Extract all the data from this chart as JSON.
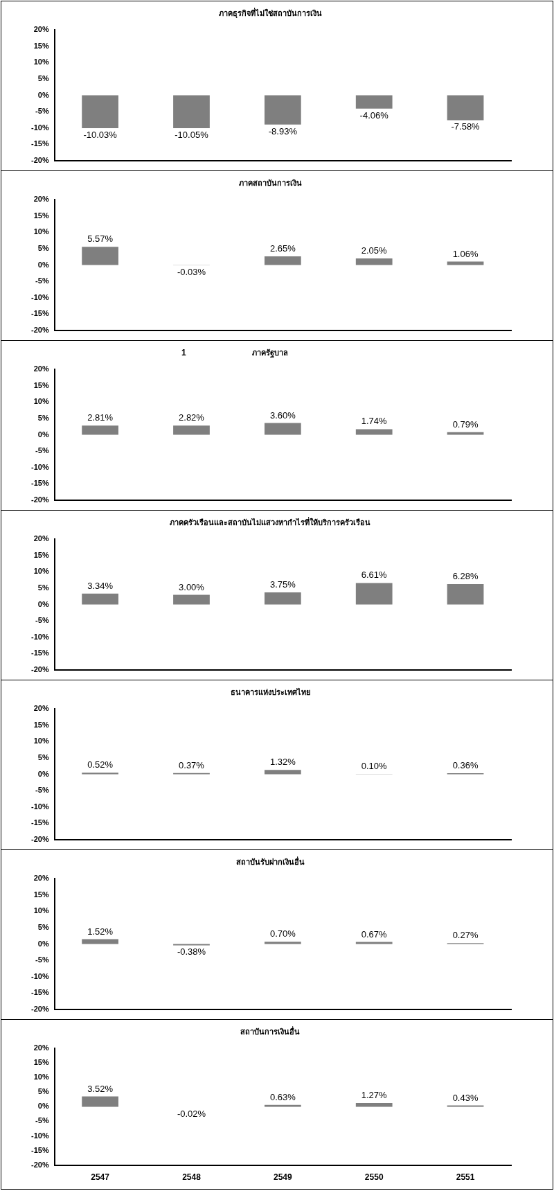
{
  "chart_data": [
    {
      "type": "bar",
      "title": "ภาคธุรกิจที่ไม่ใช่สถาบันการเงิน",
      "categories": [
        "2547",
        "2548",
        "2549",
        "2550",
        "2551"
      ],
      "values": [
        -10.03,
        -10.05,
        -8.93,
        -4.06,
        -7.58
      ],
      "value_labels": [
        "-10.03%",
        "-10.05%",
        "-8.93%",
        "-4.06%",
        "-7.58%"
      ],
      "color": "#7f7f7f",
      "ylim": [
        -20,
        20
      ],
      "yticks": [
        {
          "value": -20,
          "label": "-20%"
        },
        {
          "value": -15,
          "label": "-15%"
        },
        {
          "value": -10,
          "label": "-10%"
        },
        {
          "value": -5,
          "label": "-5%"
        },
        {
          "value": 0,
          "label": "0%"
        },
        {
          "value": 5,
          "label": "5%"
        },
        {
          "value": 10,
          "label": "10%"
        },
        {
          "value": 15,
          "label": "15%"
        },
        {
          "value": 20,
          "label": "20%"
        }
      ],
      "tick_labels": "y"
    },
    {
      "type": "bar",
      "title": "ภาคสถาบันการเงิน",
      "categories": [
        "2547",
        "2548",
        "2549",
        "2550",
        "2551"
      ],
      "values": [
        5.57,
        -0.03,
        2.65,
        2.05,
        1.06
      ],
      "value_labels": [
        "5.57%",
        "-0.03%",
        "2.65%",
        "2.05%",
        "1.06%"
      ],
      "color": "#7f7f7f",
      "ylim": [
        -20,
        20
      ],
      "yticks": [
        {
          "value": -20,
          "label": "-20%"
        },
        {
          "value": -15,
          "label": "-15%"
        },
        {
          "value": -10,
          "label": "-10%"
        },
        {
          "value": -5,
          "label": "-5%"
        },
        {
          "value": 0,
          "label": "0%"
        },
        {
          "value": 5,
          "label": "5%"
        },
        {
          "value": 10,
          "label": "10%"
        },
        {
          "value": 15,
          "label": "15%"
        },
        {
          "value": 20,
          "label": "20%"
        }
      ],
      "tick_labels": "y"
    },
    {
      "type": "bar",
      "title": "ภาครัฐบาล",
      "annotations": [
        "1"
      ],
      "categories": [
        "2547",
        "2548",
        "2549",
        "2550",
        "2551"
      ],
      "values": [
        2.81,
        2.82,
        3.6,
        1.74,
        0.79
      ],
      "value_labels": [
        "2.81%",
        "2.82%",
        "3.60%",
        "1.74%",
        "0.79%"
      ],
      "color": "#7f7f7f",
      "ylim": [
        -20,
        20
      ],
      "yticks": [
        {
          "value": -20,
          "label": "-20%"
        },
        {
          "value": -15,
          "label": "-15%"
        },
        {
          "value": -10,
          "label": "-10%"
        },
        {
          "value": -5,
          "label": "-5%"
        },
        {
          "value": 0,
          "label": "0%"
        },
        {
          "value": 5,
          "label": "5%"
        },
        {
          "value": 10,
          "label": "10%"
        },
        {
          "value": 15,
          "label": "15%"
        },
        {
          "value": 20,
          "label": "20%"
        }
      ],
      "tick_labels": "y"
    },
    {
      "type": "bar",
      "title": "ภาคครัวเรือนและสถาบันไม่แสวงหากำไรที่ให้บริการครัวเรือน",
      "categories": [
        "2547",
        "2548",
        "2549",
        "2550",
        "2551"
      ],
      "values": [
        3.34,
        3.0,
        3.75,
        6.61,
        6.28
      ],
      "value_labels": [
        "3.34%",
        "3.00%",
        "3.75%",
        "6.61%",
        "6.28%"
      ],
      "color": "#7f7f7f",
      "ylim": [
        -20,
        20
      ],
      "yticks": [
        {
          "value": -20,
          "label": "-20%"
        },
        {
          "value": -15,
          "label": "-15%"
        },
        {
          "value": -10,
          "label": "-10%"
        },
        {
          "value": -5,
          "label": "-5%"
        },
        {
          "value": 0,
          "label": "0%"
        },
        {
          "value": 5,
          "label": "5%"
        },
        {
          "value": 10,
          "label": "10%"
        },
        {
          "value": 15,
          "label": "15%"
        },
        {
          "value": 20,
          "label": "20%"
        }
      ],
      "tick_labels": "y"
    },
    {
      "type": "bar",
      "title": "ธนาคารแห่งประเทศไทย",
      "categories": [
        "2547",
        "2548",
        "2549",
        "2550",
        "2551"
      ],
      "values": [
        0.52,
        0.37,
        1.32,
        0.1,
        0.36
      ],
      "value_labels": [
        "0.52%",
        "0.37%",
        "1.32%",
        "0.10%",
        "0.36%"
      ],
      "color": "#7f7f7f",
      "ylim": [
        -20,
        20
      ],
      "yticks": [
        {
          "value": -20,
          "label": "-20%"
        },
        {
          "value": -15,
          "label": "-15%"
        },
        {
          "value": -10,
          "label": "-10%"
        },
        {
          "value": -5,
          "label": "-5%"
        },
        {
          "value": 0,
          "label": "0%"
        },
        {
          "value": 5,
          "label": "5%"
        },
        {
          "value": 10,
          "label": "10%"
        },
        {
          "value": 15,
          "label": "15%"
        },
        {
          "value": 20,
          "label": "20%"
        }
      ],
      "tick_labels": "y"
    },
    {
      "type": "bar",
      "title": "สถาบันรับฝากเงินอื่น",
      "categories": [
        "2547",
        "2548",
        "2549",
        "2550",
        "2551"
      ],
      "values": [
        1.52,
        -0.38,
        0.7,
        0.67,
        0.27
      ],
      "value_labels": [
        "1.52%",
        "-0.38%",
        "0.70%",
        "0.67%",
        "0.27%"
      ],
      "color": "#7f7f7f",
      "ylim": [
        -20,
        20
      ],
      "yticks": [
        {
          "value": -20,
          "label": "-20%"
        },
        {
          "value": -15,
          "label": "-15%"
        },
        {
          "value": -10,
          "label": "-10%"
        },
        {
          "value": -5,
          "label": "-5%"
        },
        {
          "value": 0,
          "label": "0%"
        },
        {
          "value": 5,
          "label": "5%"
        },
        {
          "value": 10,
          "label": "10%"
        },
        {
          "value": 15,
          "label": "15%"
        },
        {
          "value": 20,
          "label": "20%"
        }
      ],
      "tick_labels": "y"
    },
    {
      "type": "bar",
      "title": "สถาบันการเงินอื่น",
      "categories": [
        "2547",
        "2548",
        "2549",
        "2550",
        "2551"
      ],
      "values": [
        3.52,
        -0.02,
        0.63,
        1.27,
        0.43
      ],
      "value_labels": [
        "3.52%",
        "-0.02%",
        "0.63%",
        "1.27%",
        "0.43%"
      ],
      "color": "#7f7f7f",
      "ylim": [
        -20,
        20
      ],
      "yticks": [
        {
          "value": -20,
          "label": "-20%"
        },
        {
          "value": -15,
          "label": "-15%"
        },
        {
          "value": -10,
          "label": "-10%"
        },
        {
          "value": -5,
          "label": "-5%"
        },
        {
          "value": 0,
          "label": "0%"
        },
        {
          "value": 5,
          "label": "5%"
        },
        {
          "value": 10,
          "label": "10%"
        },
        {
          "value": 15,
          "label": "15%"
        },
        {
          "value": 20,
          "label": "20%"
        }
      ]
    }
  ]
}
